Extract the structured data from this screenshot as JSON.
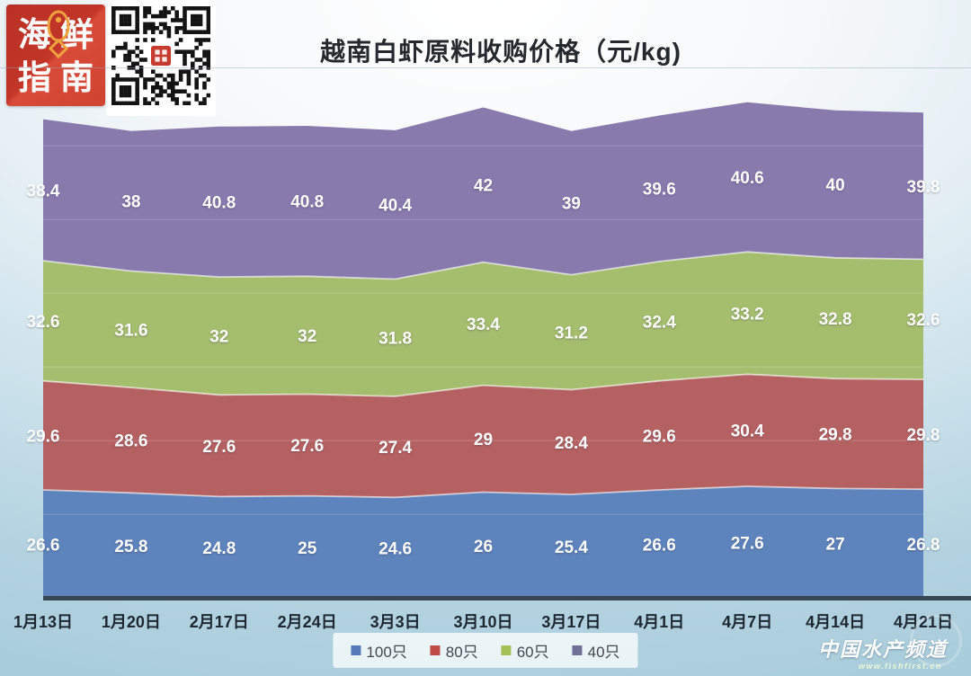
{
  "header": {
    "logo": {
      "chars": [
        "海",
        "鲜",
        "指",
        "南"
      ],
      "bg_color": "#c23528",
      "fish_icon_color": "#f0a33c"
    },
    "title": "越南白虾原料收购价格（元/kg)"
  },
  "chart_data": {
    "type": "area",
    "stacked": true,
    "title": "越南白虾原料收购价格（元/kg)",
    "unit": "元/kg",
    "categories": [
      "1月13日",
      "1月20日",
      "2月17日",
      "2月24日",
      "3月3日",
      "3月10日",
      "3月17日",
      "4月1日",
      "4月7日",
      "4月14日",
      "4月21日"
    ],
    "series": [
      {
        "name": "100只",
        "color": "#5e84bd",
        "legend_color": "#567ab7",
        "values": [
          26.6,
          25.8,
          24.8,
          25,
          24.6,
          26,
          25.4,
          26.6,
          27.6,
          27,
          26.8
        ]
      },
      {
        "name": "80只",
        "color": "#b66161",
        "legend_color": "#c04a45",
        "values": [
          29.6,
          28.6,
          27.6,
          27.6,
          27.4,
          29,
          28.4,
          29.6,
          30.4,
          29.8,
          29.8
        ]
      },
      {
        "name": "60只",
        "color": "#a5be6e",
        "legend_color": "#a3c156",
        "values": [
          32.6,
          31.6,
          32,
          32,
          31.8,
          33.4,
          31.2,
          32.4,
          33.2,
          32.8,
          32.6
        ]
      },
      {
        "name": "40只",
        "color": "#897aae",
        "legend_color": "#6f6f97",
        "values": [
          38.4,
          38,
          40.8,
          40.8,
          40.4,
          42,
          39,
          39.6,
          40.6,
          40,
          39.8
        ]
      }
    ],
    "legend_position": "bottom",
    "grid": "faint-horizontal",
    "x_axis_color": "#3a4552",
    "data_label_color": "#ffffff"
  },
  "footer": {
    "watermark_title": "中国水产频道",
    "watermark_url": "www.fishfirst.cn"
  }
}
